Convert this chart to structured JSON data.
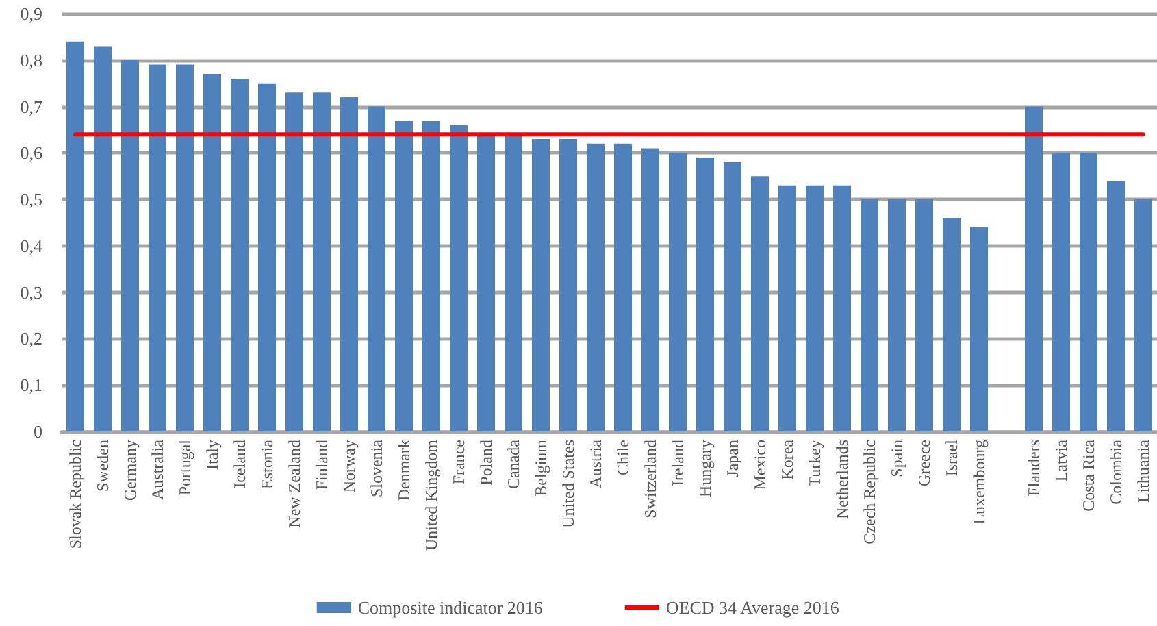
{
  "chart_data": {
    "type": "bar",
    "categories": [
      "Slovak Republic",
      "Sweden",
      "Germany",
      "Australia",
      "Portugal",
      "Italy",
      "Iceland",
      "Estonia",
      "New Zealand",
      "Finland",
      "Norway",
      "Slovenia",
      "Denmark",
      "United Kingdom",
      "France",
      "Poland",
      "Canada",
      "Belgium",
      "United States",
      "Austria",
      "Chile",
      "Switzerland",
      "Ireland",
      "Hungary",
      "Japan",
      "Mexico",
      "Korea",
      "Turkey",
      "Netherlands",
      "Czech Republic",
      "Spain",
      "Greece",
      "Israel",
      "Luxembourg",
      null,
      "Flanders",
      "Latvia",
      "Costa Rica",
      "Colombia",
      "Lithuania"
    ],
    "series": [
      {
        "name": "Composite indicator 2016",
        "color": "#4f81bd",
        "values": [
          0.84,
          0.83,
          0.8,
          0.79,
          0.79,
          0.77,
          0.76,
          0.75,
          0.73,
          0.73,
          0.72,
          0.7,
          0.67,
          0.67,
          0.66,
          0.64,
          0.64,
          0.63,
          0.63,
          0.62,
          0.62,
          0.61,
          0.6,
          0.59,
          0.58,
          0.55,
          0.53,
          0.53,
          0.53,
          0.5,
          0.5,
          0.5,
          0.46,
          0.44,
          null,
          0.7,
          0.6,
          0.6,
          0.54,
          0.5
        ]
      },
      {
        "name": "OECD 34 Average 2016",
        "type": "line",
        "color": "#ff0000",
        "values": [
          0.64,
          0.64,
          0.64,
          0.64,
          0.64,
          0.64,
          0.64,
          0.64,
          0.64,
          0.64,
          0.64,
          0.64,
          0.64,
          0.64,
          0.64,
          0.64,
          0.64,
          0.64,
          0.64,
          0.64,
          0.64,
          0.64,
          0.64,
          0.64,
          0.64,
          0.64,
          0.64,
          0.64,
          0.64,
          0.64,
          0.64,
          0.64,
          0.64,
          0.64,
          0.64,
          0.64,
          0.64,
          0.64,
          0.64,
          0.64
        ]
      }
    ],
    "ylim": [
      0,
      0.9
    ],
    "yticks": [
      0,
      {
        "value": 0.1,
        "label": "0,1"
      },
      {
        "value": 0.2,
        "label": "0,2"
      },
      {
        "value": 0.3,
        "label": "0,3"
      },
      {
        "value": 0.4,
        "label": "0,4"
      },
      {
        "value": 0.5,
        "label": "0,5"
      },
      {
        "value": 0.6,
        "label": "0,6"
      },
      {
        "value": 0.7,
        "label": "0,7"
      },
      {
        "value": 0.8,
        "label": "0,8"
      },
      {
        "value": 0.9,
        "label": "0,9"
      }
    ],
    "grid": "y",
    "legend": "bottom",
    "marker": "none",
    "line_style": "solid"
  }
}
